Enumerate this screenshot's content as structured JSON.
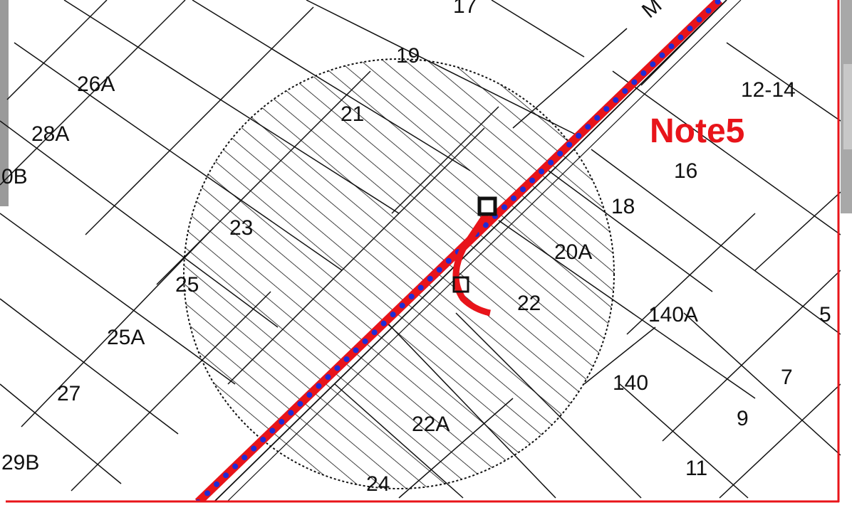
{
  "map": {
    "note": "Note5",
    "street_label": "M",
    "parcels": [
      "17",
      "19",
      "26A",
      "21",
      "28A",
      "0B",
      "23",
      "25",
      "25A",
      "27",
      "29B",
      "24",
      "22A",
      "22",
      "20A",
      "18",
      "16",
      "12-14",
      "140A",
      "140",
      "5",
      "7",
      "9",
      "11"
    ],
    "colors": {
      "frame": "#e8141a",
      "route_red": "#e8141a",
      "route_blue": "#1f2bd6",
      "lines": "#111111",
      "background": "#ffffff",
      "photo_edge": "#9a9a9a"
    }
  }
}
